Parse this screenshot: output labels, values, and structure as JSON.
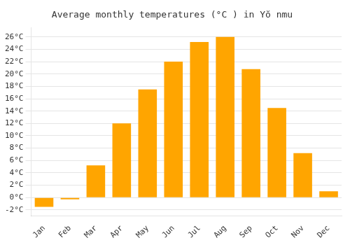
{
  "chart_data": {
    "type": "bar",
    "title": "Average monthly temperatures (°C ) in Yŏ nmu",
    "categories": [
      "Jan",
      "Feb",
      "Mar",
      "Apr",
      "May",
      "Jun",
      "Jul",
      "Aug",
      "Sep",
      "Oct",
      "Nov",
      "Dec"
    ],
    "values": [
      -1.5,
      -0.3,
      5.2,
      12.0,
      17.5,
      22.0,
      25.2,
      26.0,
      20.8,
      14.5,
      7.2,
      1.0
    ],
    "color": "#FFA500",
    "ylim": [
      -3.0,
      27.5
    ],
    "yticks": [
      {
        "value": 26,
        "label": "26°C"
      },
      {
        "value": 24,
        "label": "24°C"
      },
      {
        "value": 22,
        "label": "22°C"
      },
      {
        "value": 20,
        "label": "20°C"
      },
      {
        "value": 18,
        "label": "18°C"
      },
      {
        "value": 16,
        "label": "16°C"
      },
      {
        "value": 14,
        "label": "14°C"
      },
      {
        "value": 12,
        "label": "12°C"
      },
      {
        "value": 10,
        "label": "10°C"
      },
      {
        "value": 8,
        "label": "8°C"
      },
      {
        "value": 6,
        "label": "6°C"
      },
      {
        "value": 4,
        "label": "4°C"
      },
      {
        "value": 2,
        "label": "2°C"
      },
      {
        "value": 0,
        "label": "0°C"
      },
      {
        "value": -2,
        "label": "-2°C"
      }
    ],
    "grid": true
  }
}
